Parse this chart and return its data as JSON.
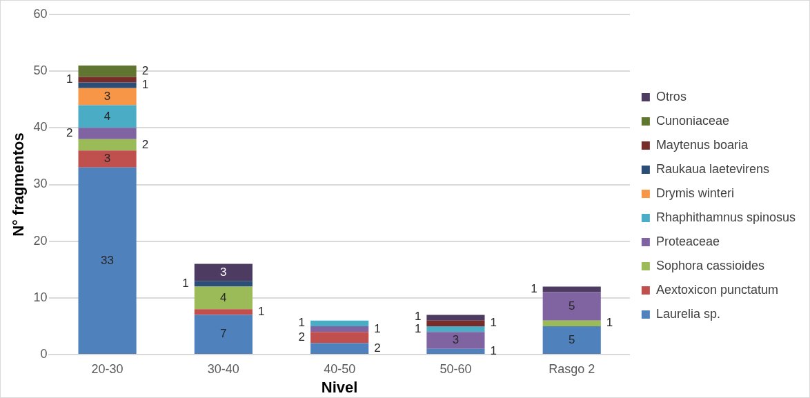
{
  "chart_data": {
    "type": "bar",
    "stacked": true,
    "xlabel": "Nivel",
    "ylabel": "N° fragmentos",
    "categories": [
      "20-30",
      "30-40",
      "40-50",
      "50-60",
      "Rasgo 2"
    ],
    "ylim": [
      0,
      60
    ],
    "yticks": [
      0,
      10,
      20,
      30,
      40,
      50,
      60
    ],
    "grid": "y",
    "legend": "right",
    "data_labels": true,
    "series": [
      {
        "name": "Laurelia sp.",
        "color": "#4f81bd",
        "values": [
          33,
          7,
          2,
          1,
          5
        ]
      },
      {
        "name": "Aextoxicon punctatum",
        "color": "#c0504d",
        "values": [
          3,
          1,
          2,
          null,
          null
        ]
      },
      {
        "name": "Sophora cassioides",
        "color": "#9bbb59",
        "values": [
          2,
          4,
          null,
          null,
          1
        ]
      },
      {
        "name": "Proteaceae",
        "color": "#8064a2",
        "values": [
          2,
          null,
          1,
          3,
          5
        ]
      },
      {
        "name": "Rhaphithamnus spinosus",
        "color": "#4bacc6",
        "values": [
          4,
          null,
          1,
          1,
          null
        ]
      },
      {
        "name": "Drymis winteri",
        "color": "#f79646",
        "values": [
          3,
          null,
          null,
          null,
          null
        ]
      },
      {
        "name": "Raukaua laetevirens",
        "color": "#2c4d75",
        "values": [
          1,
          1,
          null,
          null,
          null
        ]
      },
      {
        "name": "Maytenus boaria",
        "color": "#772c2a",
        "values": [
          1,
          null,
          null,
          1,
          null
        ]
      },
      {
        "name": "Cunoniaceae",
        "color": "#5f7530",
        "values": [
          2,
          null,
          null,
          null,
          null
        ]
      },
      {
        "name": "Otros",
        "color": "#4d3b62",
        "values": [
          null,
          3,
          null,
          1,
          1
        ]
      }
    ]
  }
}
